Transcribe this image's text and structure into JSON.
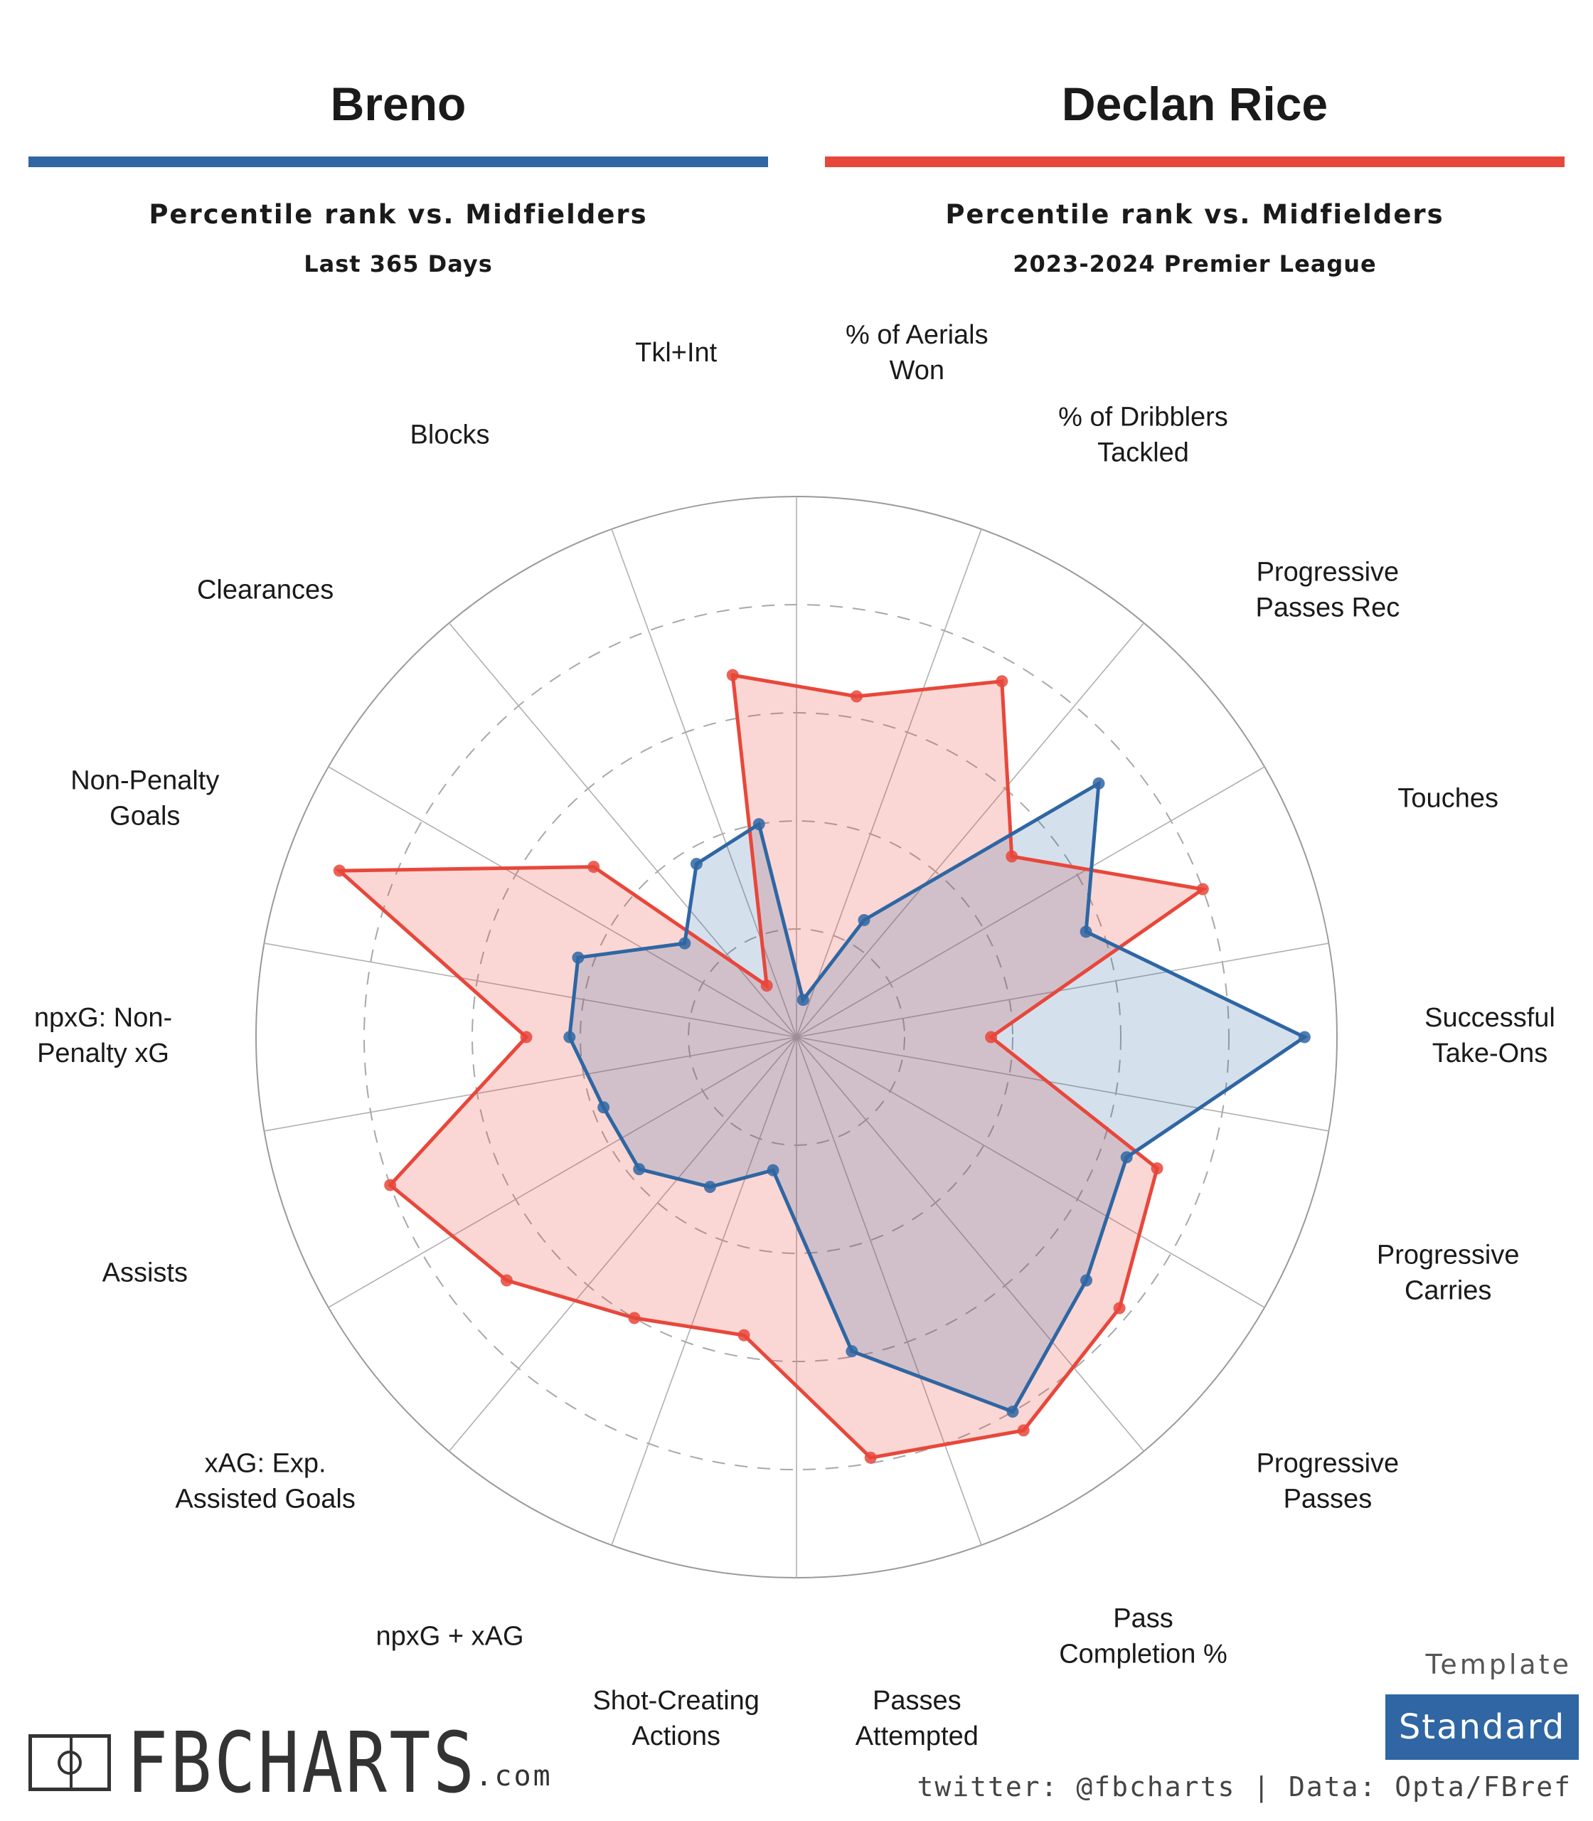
{
  "header": {
    "left": {
      "name": "Breno",
      "comparison": "Percentile rank vs. Midfielders",
      "period": "Last 365 Days",
      "color": "#2f66a3"
    },
    "right": {
      "name": "Declan Rice",
      "comparison": "Percentile rank vs. Midfielders",
      "period": "2023-2024 Premier League",
      "color": "#e8473b"
    }
  },
  "chart_data": {
    "type": "radar",
    "range": [
      0,
      100
    ],
    "rings": [
      20,
      40,
      60,
      80,
      100
    ],
    "grid": true,
    "categories": [
      [
        "Successful",
        "Take-Ons"
      ],
      [
        "Touches"
      ],
      [
        "Progressive",
        "Passes Rec"
      ],
      [
        "% of Dribblers",
        "Tackled"
      ],
      [
        "% of Aerials",
        "Won"
      ],
      [
        "Tkl+Int"
      ],
      [
        "Blocks"
      ],
      [
        "Clearances"
      ],
      [
        "Non-Penalty",
        "Goals"
      ],
      [
        "npxG: Non-",
        "Penalty xG"
      ],
      [
        "Assists"
      ],
      [
        "xAG: Exp.",
        "Assisted Goals"
      ],
      [
        "npxG + xAG"
      ],
      [
        "Shot-Creating",
        "Actions"
      ],
      [
        "Passes",
        "Attempted"
      ],
      [
        "Pass",
        "Completion %"
      ],
      [
        "Progressive",
        "Passes"
      ],
      [
        "Progressive",
        "Carries"
      ]
    ],
    "series": [
      {
        "name": "Breno",
        "color": "#2f66a3",
        "fill": "rgba(47,102,163,0.2)",
        "values": [
          94,
          57,
          73,
          25,
          7,
          40,
          37,
          27,
          43,
          42,
          38,
          38,
          32,
          25,
          59,
          80,
          70,
          65
        ]
      },
      {
        "name": "Declan Rice",
        "color": "#e8473b",
        "fill": "rgba(232,71,59,0.22)",
        "values": [
          36,
          80,
          52,
          76,
          64,
          68,
          11,
          49,
          90,
          50,
          80,
          70,
          60,
          56,
          79,
          84,
          78,
          71
        ]
      }
    ]
  },
  "footer": {
    "template_label": "Template",
    "template_value": "Standard",
    "credit": "twitter: @fbcharts | Data: Opta/FBref",
    "logo_text": "FBCHARTS",
    "logo_suffix": ".com"
  }
}
